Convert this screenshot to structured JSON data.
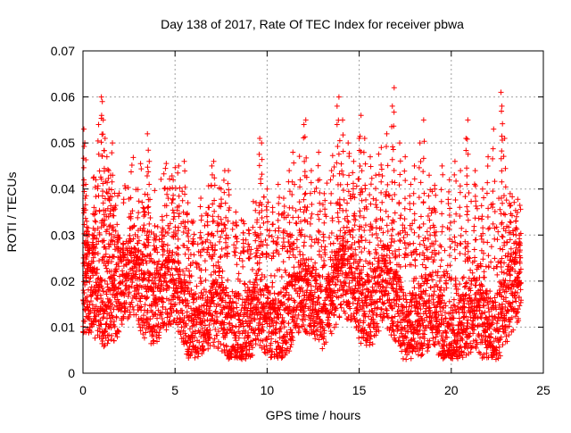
{
  "chart_data": {
    "type": "scatter",
    "title": "Day 138 of 2017, Rate Of TEC Index for receiver pbwa",
    "xlabel": "GPS time / hours",
    "ylabel": "ROTI / TECUs",
    "xlim": [
      0,
      25
    ],
    "ylim": [
      0,
      0.07
    ],
    "x_ticks": [
      "0",
      "5",
      "10",
      "15",
      "20",
      "25"
    ],
    "y_ticks": [
      "0",
      "0.01",
      "0.02",
      "0.03",
      "0.04",
      "0.05",
      "0.06",
      "0.07"
    ],
    "grid": true,
    "marker": "plus",
    "color": "#ff0000",
    "series": [
      {
        "x_range": [
          0,
          23.8
        ],
        "points": [
          [
            0.05,
            0.053
          ],
          [
            0.1,
            0.05
          ],
          [
            0.15,
            0.041
          ],
          [
            0.2,
            0.033
          ],
          [
            0.3,
            0.028
          ],
          [
            0.5,
            0.03
          ],
          [
            0.6,
            0.036
          ],
          [
            0.7,
            0.042
          ],
          [
            0.85,
            0.054
          ],
          [
            1.0,
            0.06
          ],
          [
            1.05,
            0.059
          ],
          [
            1.1,
            0.055
          ],
          [
            1.2,
            0.051
          ],
          [
            1.3,
            0.047
          ],
          [
            1.4,
            0.044
          ],
          [
            1.5,
            0.043
          ],
          [
            1.6,
            0.05
          ],
          [
            1.7,
            0.036
          ],
          [
            1.9,
            0.03
          ],
          [
            2.2,
            0.028
          ],
          [
            2.6,
            0.034
          ],
          [
            3.0,
            0.031
          ],
          [
            3.3,
            0.035
          ],
          [
            3.5,
            0.052
          ],
          [
            3.6,
            0.046
          ],
          [
            3.9,
            0.032
          ],
          [
            4.3,
            0.034
          ],
          [
            4.6,
            0.04
          ],
          [
            4.9,
            0.042
          ],
          [
            5.2,
            0.045
          ],
          [
            5.5,
            0.046
          ],
          [
            5.7,
            0.037
          ],
          [
            6.0,
            0.033
          ],
          [
            6.4,
            0.038
          ],
          [
            6.8,
            0.036
          ],
          [
            7.0,
            0.045
          ],
          [
            7.1,
            0.046
          ],
          [
            7.5,
            0.04
          ],
          [
            7.7,
            0.044
          ],
          [
            7.9,
            0.044
          ],
          [
            8.3,
            0.035
          ],
          [
            8.7,
            0.033
          ],
          [
            9.0,
            0.031
          ],
          [
            9.4,
            0.037
          ],
          [
            9.6,
            0.051
          ],
          [
            9.7,
            0.05
          ],
          [
            10.0,
            0.04
          ],
          [
            10.3,
            0.036
          ],
          [
            10.6,
            0.041
          ],
          [
            10.9,
            0.038
          ],
          [
            11.2,
            0.044
          ],
          [
            11.4,
            0.048
          ],
          [
            11.8,
            0.042
          ],
          [
            12.0,
            0.054
          ],
          [
            12.1,
            0.055
          ],
          [
            12.4,
            0.044
          ],
          [
            12.8,
            0.048
          ],
          [
            13.1,
            0.039
          ],
          [
            13.5,
            0.044
          ],
          [
            13.8,
            0.058
          ],
          [
            13.9,
            0.06
          ],
          [
            14.1,
            0.055
          ],
          [
            14.4,
            0.05
          ],
          [
            14.7,
            0.046
          ],
          [
            15.0,
            0.051
          ],
          [
            15.1,
            0.056
          ],
          [
            15.3,
            0.051
          ],
          [
            15.6,
            0.047
          ],
          [
            15.9,
            0.043
          ],
          [
            16.2,
            0.049
          ],
          [
            16.5,
            0.052
          ],
          [
            16.8,
            0.058
          ],
          [
            16.9,
            0.062
          ],
          [
            17.2,
            0.05
          ],
          [
            17.5,
            0.047
          ],
          [
            17.8,
            0.041
          ],
          [
            18.0,
            0.045
          ],
          [
            18.3,
            0.05
          ],
          [
            18.5,
            0.055
          ],
          [
            18.8,
            0.043
          ],
          [
            19.1,
            0.04
          ],
          [
            19.5,
            0.045
          ],
          [
            19.9,
            0.042
          ],
          [
            20.2,
            0.046
          ],
          [
            20.5,
            0.044
          ],
          [
            20.8,
            0.051
          ],
          [
            20.9,
            0.055
          ],
          [
            21.3,
            0.044
          ],
          [
            21.7,
            0.04
          ],
          [
            22.0,
            0.047
          ],
          [
            22.3,
            0.053
          ],
          [
            22.7,
            0.061
          ],
          [
            22.75,
            0.058
          ],
          [
            22.9,
            0.051
          ],
          [
            23.2,
            0.039
          ],
          [
            23.5,
            0.033
          ],
          [
            23.7,
            0.03
          ]
        ]
      }
    ]
  }
}
